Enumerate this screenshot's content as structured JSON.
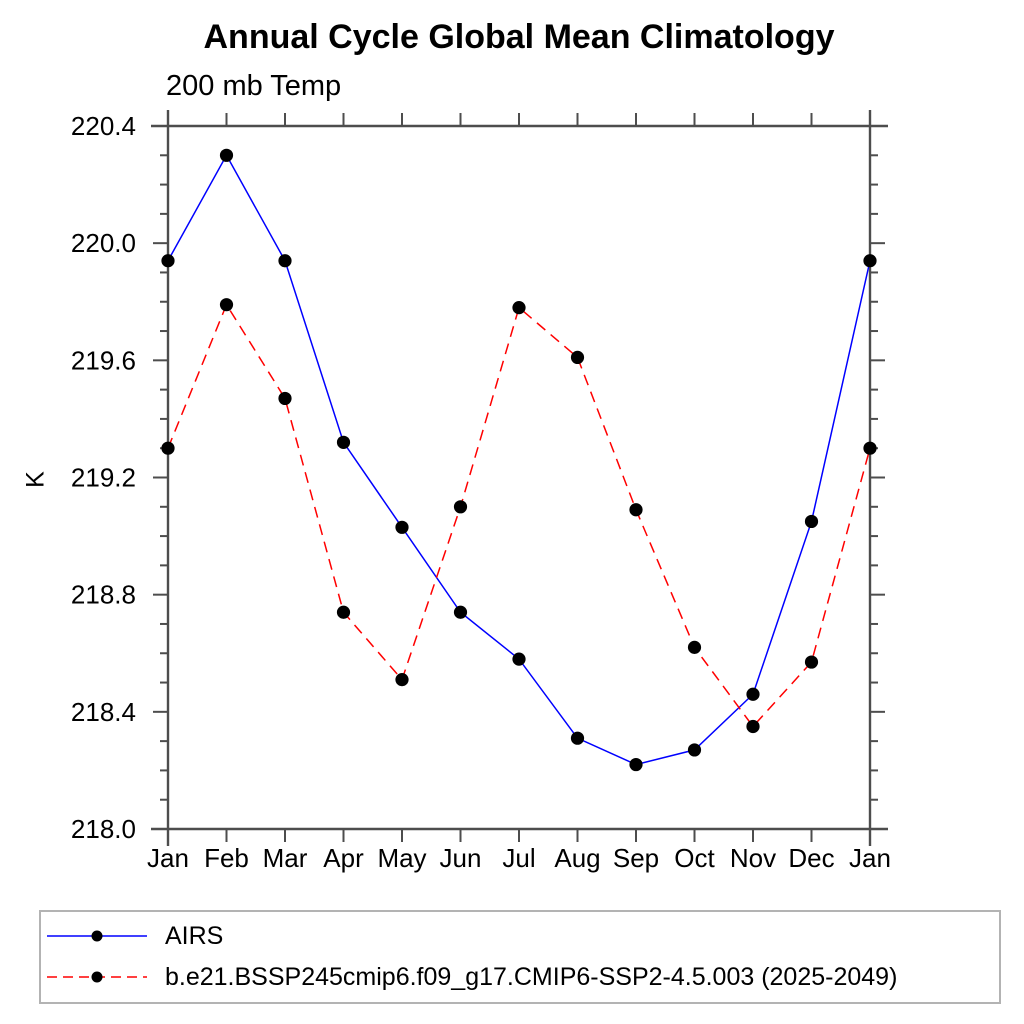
{
  "chart": {
    "title": "Annual Cycle Global Mean Climatology",
    "subtitle": "200 mb Temp",
    "ylabel": "K"
  },
  "colors": {
    "axis": "#4d4d4d",
    "marker": "#000000",
    "text": "#000000",
    "legend_border": "#b3b3b3",
    "airs_line": "#0000ff",
    "model_line": "#ff0000"
  },
  "chart_data": {
    "type": "line",
    "title": "Annual Cycle Global Mean Climatology",
    "subtitle": "200 mb Temp",
    "xlabel": "",
    "ylabel": "K",
    "categories": [
      "Jan",
      "Feb",
      "Mar",
      "Apr",
      "May",
      "Jun",
      "Jul",
      "Aug",
      "Sep",
      "Oct",
      "Nov",
      "Dec",
      "Jan"
    ],
    "ylim": [
      218.0,
      220.4
    ],
    "y_major_tick_step": 0.4,
    "y_minor_tick_step": 0.1,
    "y_tick_labels": [
      "220.4",
      "220.0",
      "219.6",
      "219.2",
      "218.8",
      "218.4",
      "218.0"
    ],
    "y_tick_values": [
      220.4,
      220.0,
      219.6,
      219.2,
      218.8,
      218.4,
      218.0
    ],
    "grid": false,
    "legend_position": "bottom-left-box",
    "series": [
      {
        "name": "AIRS",
        "color": "#0000ff",
        "line_style": "solid",
        "marker": "filled-black-circle",
        "values": [
          219.94,
          220.3,
          219.94,
          219.32,
          219.03,
          218.74,
          218.58,
          218.31,
          218.22,
          218.27,
          218.46,
          219.05,
          219.94
        ]
      },
      {
        "name": "b.e21.BSSP245cmip6.f09_g17.CMIP6-SSP2-4.5.003 (2025-2049)",
        "color": "#ff0000",
        "line_style": "dashed",
        "marker": "filled-black-circle",
        "values": [
          219.3,
          219.79,
          219.47,
          218.74,
          218.51,
          219.1,
          219.78,
          219.61,
          219.09,
          218.62,
          218.35,
          218.57,
          219.3
        ]
      }
    ]
  }
}
